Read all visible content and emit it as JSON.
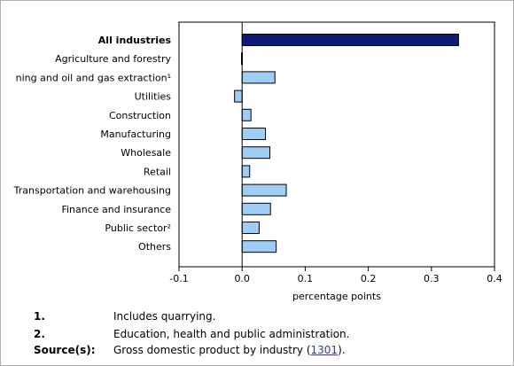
{
  "chart_data": {
    "type": "bar",
    "orientation": "horizontal",
    "categories": [
      "All industries",
      "Agriculture and forestry",
      "ning and oil and gas extraction¹",
      "Utilities",
      "Construction",
      "Manufacturing",
      "Wholesale",
      "Retail",
      "Transportation and warehousing",
      "Finance and insurance",
      "Public sector²",
      "Others"
    ],
    "values": [
      0.343,
      -0.001,
      0.052,
      -0.012,
      0.014,
      0.037,
      0.044,
      0.012,
      0.07,
      0.045,
      0.027,
      0.054
    ],
    "highlight_category": "All industries",
    "xlabel": "percentage points",
    "xlim": [
      -0.1,
      0.4
    ],
    "xticks": [
      "-0.1",
      "0.0",
      "0.1",
      "0.2",
      "0.3",
      "0.4"
    ],
    "grid": false,
    "colors": {
      "highlight": "#0d1a78",
      "bar": "#9fcdf5",
      "outline": "#000000"
    }
  },
  "notes": [
    {
      "label": "1.",
      "text": "Includes quarrying."
    },
    {
      "label": "2.",
      "text": "Education, health and public administration."
    }
  ],
  "source": {
    "label": "Source(s):",
    "text_before": "Gross domestic product by industry (",
    "link": "1301",
    "text_after": ")."
  }
}
